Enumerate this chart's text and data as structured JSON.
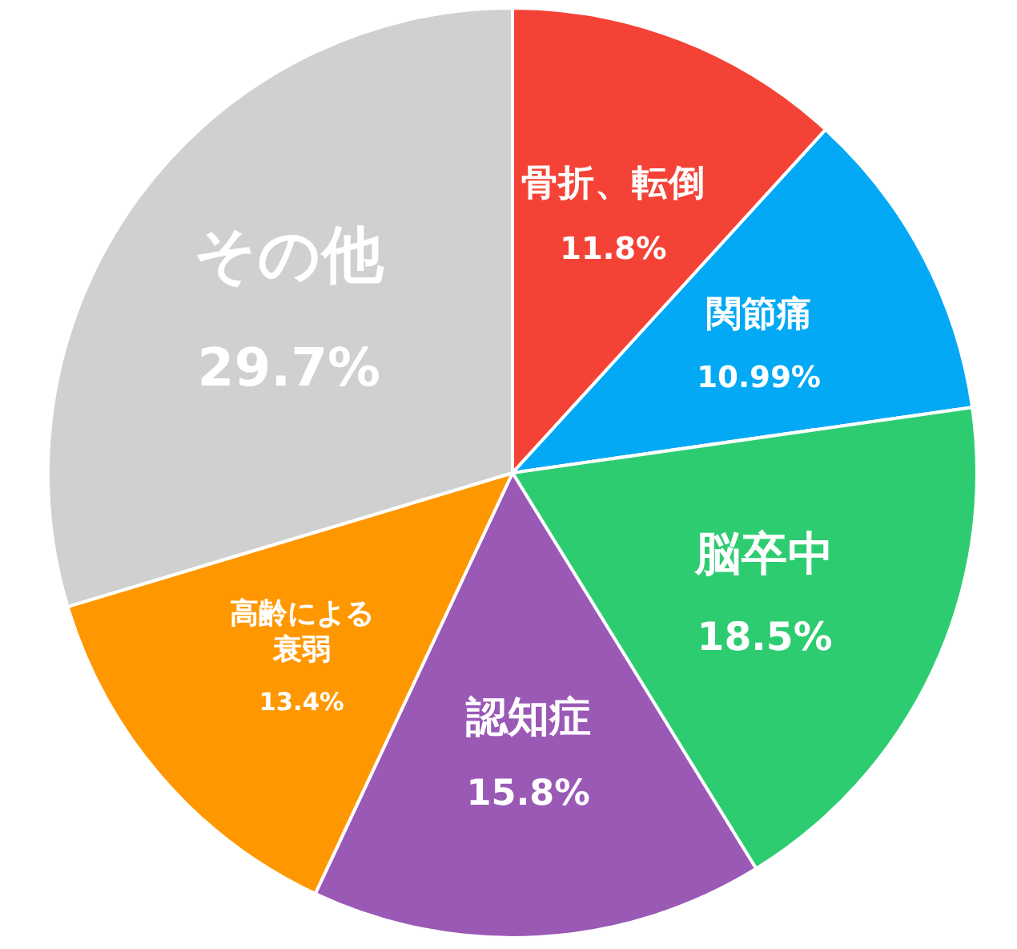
{
  "chart_data": {
    "type": "pie",
    "categories": [
      "骨折、転倒",
      "関節痛",
      "脳卒中",
      "認知症",
      "高齢による衰弱",
      "その他"
    ],
    "values": [
      11.8,
      10.99,
      18.5,
      15.8,
      13.4,
      29.7
    ],
    "value_labels": [
      "11.8%",
      "10.99%",
      "18.5%",
      "15.8%",
      "13.4%",
      "29.7%"
    ],
    "colors": [
      "#f44336",
      "#03a9f4",
      "#2ecc71",
      "#9b59b6",
      "#ff9800",
      "#d0d0d0"
    ]
  }
}
